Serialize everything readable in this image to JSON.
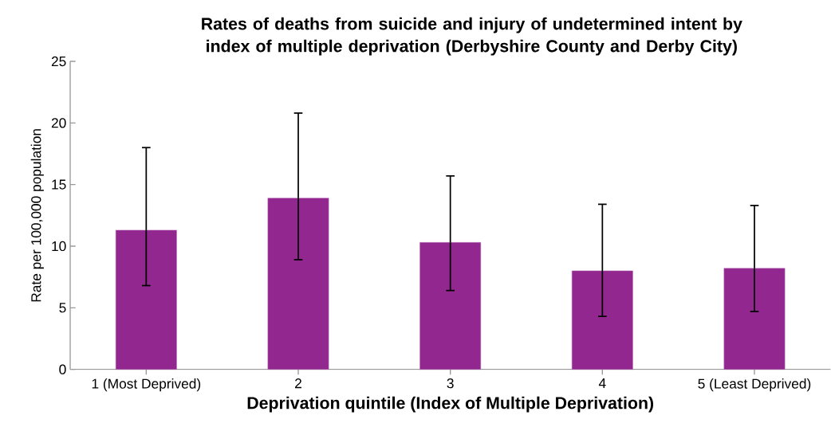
{
  "chart_data": {
    "type": "bar",
    "title": "Rates of deaths from suicide and injury of undetermined intent by index of multiple deprivation (Derbyshire County and Derby City)",
    "xlabel": "Deprivation quintile (Index of Multiple Deprivation)",
    "ylabel": "Rate per 100,000 population",
    "categories": [
      "1 (Most Deprived)",
      "2",
      "3",
      "4",
      "5 (Least Deprived)"
    ],
    "values": [
      11.3,
      13.9,
      10.3,
      8.0,
      8.2
    ],
    "errors": [
      [
        6.8,
        18.0
      ],
      [
        8.9,
        20.8
      ],
      [
        6.4,
        15.7
      ],
      [
        4.3,
        13.4
      ],
      [
        4.7,
        13.3
      ]
    ],
    "color": "#92278f",
    "ylim": [
      0,
      25
    ],
    "yticks": [
      0,
      5,
      10,
      15,
      20,
      25
    ],
    "grid": false
  }
}
